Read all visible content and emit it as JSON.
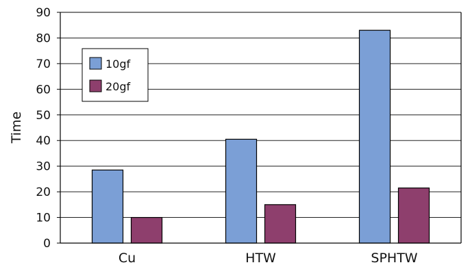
{
  "chart_data": {
    "type": "bar",
    "categories": [
      "Cu",
      "HTW",
      "SPHTW"
    ],
    "series": [
      {
        "name": "10gf",
        "values": [
          28.5,
          40.5,
          83
        ],
        "color": "#7b9fd6"
      },
      {
        "name": "20gf",
        "values": [
          10,
          15,
          21.5
        ],
        "color": "#8e3f6d"
      }
    ],
    "ylabel": "Time",
    "xlabel": "",
    "ylim": [
      0,
      90
    ],
    "yticks": [
      "0",
      "10",
      "20",
      "30",
      "40",
      "50",
      "60",
      "70",
      "80",
      "90"
    ],
    "grid": true,
    "legend_position": "top-left"
  }
}
